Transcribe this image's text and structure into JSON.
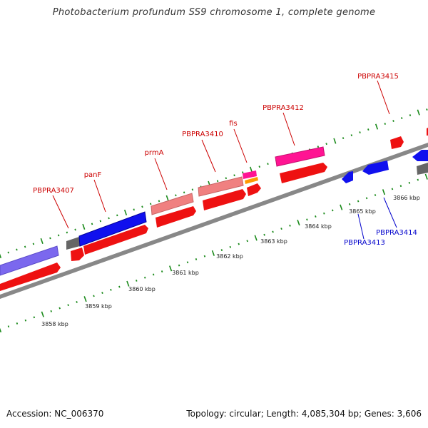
{
  "title": "Photobacterium profundum SS9 chromosome 1, complete genome",
  "footer": {
    "accession": "Accession: NC_006370",
    "summary": "Topology: circular; Length: 4,085,304 bp; Genes: 3,606"
  },
  "colors": {
    "forward_label": "#cc0000",
    "reverse_label": "#0000cc",
    "tick": "#1a8a1a",
    "backbone": "#888888"
  },
  "scale_labels": [
    "3858 kbp",
    "3859 kbp",
    "3860 kbp",
    "3861 kbp",
    "3862 kbp",
    "3863 kbp",
    "3864 kbp",
    "3865 kbp",
    "3866 kbp"
  ],
  "gene_labels": [
    {
      "name": "PBPRA3407",
      "strand": "forward"
    },
    {
      "name": "panF",
      "strand": "forward"
    },
    {
      "name": "prmA",
      "strand": "forward"
    },
    {
      "name": "PBPRA3410",
      "strand": "forward"
    },
    {
      "name": "fis",
      "strand": "forward"
    },
    {
      "name": "PBPRA3412",
      "strand": "forward"
    },
    {
      "name": "PBPRA3415",
      "strand": "forward"
    },
    {
      "name": "PBPRA3413",
      "strand": "reverse"
    },
    {
      "name": "PBPRA3414",
      "strand": "reverse"
    }
  ]
}
